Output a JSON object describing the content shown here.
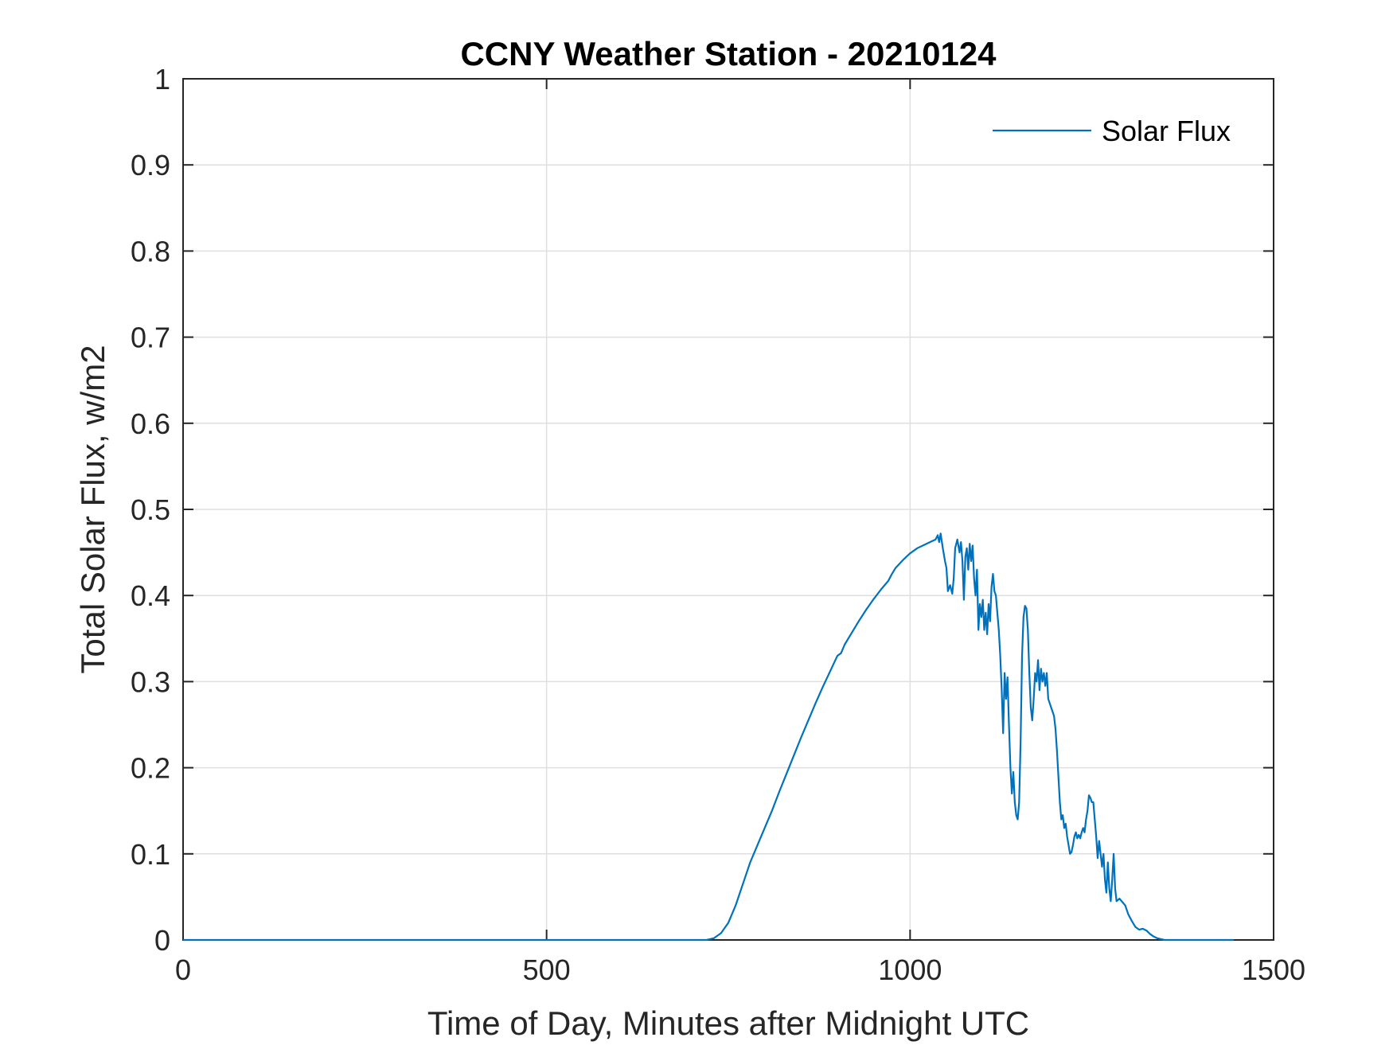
{
  "chart_data": {
    "type": "line",
    "title": "CCNY Weather Station - 20210124",
    "xlabel": "Time of Day, Minutes after Midnight UTC",
    "ylabel": "Total Solar Flux, w/m2",
    "xlim": [
      0,
      1500
    ],
    "ylim": [
      0,
      1
    ],
    "grid": true,
    "legend_position": "top-right",
    "x_ticks": [
      0,
      500,
      1000,
      1500
    ],
    "x_tick_labels": [
      "0",
      "500",
      "1000",
      "1500"
    ],
    "y_ticks": [
      0,
      0.1,
      0.2,
      0.3,
      0.4,
      0.5,
      0.6,
      0.7,
      0.8,
      0.9,
      1
    ],
    "y_tick_labels": [
      "0",
      "0.1",
      "0.2",
      "0.3",
      "0.4",
      "0.5",
      "0.6",
      "0.7",
      "0.8",
      "0.9",
      "1"
    ],
    "series": [
      {
        "name": "Solar Flux",
        "color": "#0072BD",
        "points": [
          [
            0,
            0
          ],
          [
            720,
            0
          ],
          [
            730,
            0.002
          ],
          [
            740,
            0.008
          ],
          [
            750,
            0.02
          ],
          [
            760,
            0.04
          ],
          [
            770,
            0.065
          ],
          [
            780,
            0.09
          ],
          [
            790,
            0.11
          ],
          [
            800,
            0.13
          ],
          [
            810,
            0.15
          ],
          [
            820,
            0.172
          ],
          [
            830,
            0.193
          ],
          [
            840,
            0.214
          ],
          [
            850,
            0.235
          ],
          [
            860,
            0.255
          ],
          [
            870,
            0.275
          ],
          [
            880,
            0.294
          ],
          [
            890,
            0.312
          ],
          [
            900,
            0.33
          ],
          [
            905,
            0.333
          ],
          [
            910,
            0.343
          ],
          [
            920,
            0.357
          ],
          [
            930,
            0.371
          ],
          [
            940,
            0.384
          ],
          [
            950,
            0.396
          ],
          [
            960,
            0.407
          ],
          [
            970,
            0.417
          ],
          [
            975,
            0.425
          ],
          [
            980,
            0.432
          ],
          [
            990,
            0.441
          ],
          [
            1000,
            0.449
          ],
          [
            1010,
            0.455
          ],
          [
            1020,
            0.459
          ],
          [
            1030,
            0.463
          ],
          [
            1035,
            0.465
          ],
          [
            1038,
            0.47
          ],
          [
            1040,
            0.462
          ],
          [
            1042,
            0.472
          ],
          [
            1045,
            0.455
          ],
          [
            1048,
            0.44
          ],
          [
            1050,
            0.432
          ],
          [
            1052,
            0.405
          ],
          [
            1055,
            0.412
          ],
          [
            1058,
            0.402
          ],
          [
            1060,
            0.42
          ],
          [
            1062,
            0.455
          ],
          [
            1065,
            0.465
          ],
          [
            1068,
            0.45
          ],
          [
            1070,
            0.462
          ],
          [
            1072,
            0.44
          ],
          [
            1074,
            0.395
          ],
          [
            1076,
            0.445
          ],
          [
            1078,
            0.455
          ],
          [
            1080,
            0.43
          ],
          [
            1082,
            0.46
          ],
          [
            1084,
            0.44
          ],
          [
            1086,
            0.458
          ],
          [
            1088,
            0.42
          ],
          [
            1090,
            0.4
          ],
          [
            1092,
            0.43
          ],
          [
            1094,
            0.36
          ],
          [
            1096,
            0.39
          ],
          [
            1098,
            0.375
          ],
          [
            1100,
            0.395
          ],
          [
            1102,
            0.36
          ],
          [
            1104,
            0.38
          ],
          [
            1106,
            0.355
          ],
          [
            1108,
            0.39
          ],
          [
            1110,
            0.37
          ],
          [
            1112,
            0.41
          ],
          [
            1114,
            0.425
          ],
          [
            1116,
            0.405
          ],
          [
            1118,
            0.4
          ],
          [
            1120,
            0.38
          ],
          [
            1122,
            0.36
          ],
          [
            1124,
            0.33
          ],
          [
            1126,
            0.29
          ],
          [
            1128,
            0.24
          ],
          [
            1130,
            0.31
          ],
          [
            1132,
            0.28
          ],
          [
            1134,
            0.305
          ],
          [
            1136,
            0.25
          ],
          [
            1138,
            0.2
          ],
          [
            1140,
            0.17
          ],
          [
            1142,
            0.195
          ],
          [
            1144,
            0.16
          ],
          [
            1146,
            0.145
          ],
          [
            1148,
            0.14
          ],
          [
            1150,
            0.16
          ],
          [
            1152,
            0.23
          ],
          [
            1154,
            0.33
          ],
          [
            1156,
            0.375
          ],
          [
            1158,
            0.388
          ],
          [
            1160,
            0.385
          ],
          [
            1162,
            0.36
          ],
          [
            1164,
            0.31
          ],
          [
            1166,
            0.27
          ],
          [
            1168,
            0.255
          ],
          [
            1170,
            0.28
          ],
          [
            1172,
            0.31
          ],
          [
            1174,
            0.3
          ],
          [
            1176,
            0.325
          ],
          [
            1178,
            0.29
          ],
          [
            1180,
            0.315
          ],
          [
            1182,
            0.3
          ],
          [
            1184,
            0.31
          ],
          [
            1186,
            0.295
          ],
          [
            1188,
            0.31
          ],
          [
            1190,
            0.28
          ],
          [
            1192,
            0.275
          ],
          [
            1194,
            0.27
          ],
          [
            1196,
            0.265
          ],
          [
            1198,
            0.26
          ],
          [
            1200,
            0.245
          ],
          [
            1202,
            0.22
          ],
          [
            1204,
            0.19
          ],
          [
            1206,
            0.16
          ],
          [
            1208,
            0.14
          ],
          [
            1210,
            0.145
          ],
          [
            1212,
            0.13
          ],
          [
            1214,
            0.135
          ],
          [
            1216,
            0.12
          ],
          [
            1218,
            0.11
          ],
          [
            1220,
            0.1
          ],
          [
            1222,
            0.102
          ],
          [
            1224,
            0.11
          ],
          [
            1226,
            0.12
          ],
          [
            1228,
            0.125
          ],
          [
            1230,
            0.118
          ],
          [
            1232,
            0.122
          ],
          [
            1234,
            0.118
          ],
          [
            1236,
            0.125
          ],
          [
            1238,
            0.13
          ],
          [
            1240,
            0.125
          ],
          [
            1242,
            0.14
          ],
          [
            1244,
            0.15
          ],
          [
            1246,
            0.168
          ],
          [
            1248,
            0.165
          ],
          [
            1250,
            0.16
          ],
          [
            1252,
            0.16
          ],
          [
            1254,
            0.14
          ],
          [
            1256,
            0.12
          ],
          [
            1258,
            0.095
          ],
          [
            1260,
            0.115
          ],
          [
            1262,
            0.1
          ],
          [
            1264,
            0.085
          ],
          [
            1266,
            0.1
          ],
          [
            1268,
            0.07
          ],
          [
            1270,
            0.055
          ],
          [
            1272,
            0.09
          ],
          [
            1274,
            0.06
          ],
          [
            1276,
            0.045
          ],
          [
            1278,
            0.07
          ],
          [
            1280,
            0.1
          ],
          [
            1282,
            0.06
          ],
          [
            1284,
            0.045
          ],
          [
            1288,
            0.048
          ],
          [
            1292,
            0.044
          ],
          [
            1296,
            0.04
          ],
          [
            1300,
            0.03
          ],
          [
            1305,
            0.022
          ],
          [
            1310,
            0.015
          ],
          [
            1315,
            0.012
          ],
          [
            1320,
            0.013
          ],
          [
            1325,
            0.011
          ],
          [
            1330,
            0.007
          ],
          [
            1335,
            0.004
          ],
          [
            1340,
            0.002
          ],
          [
            1345,
            0.001
          ],
          [
            1350,
            0
          ],
          [
            1445,
            0
          ]
        ]
      }
    ]
  }
}
